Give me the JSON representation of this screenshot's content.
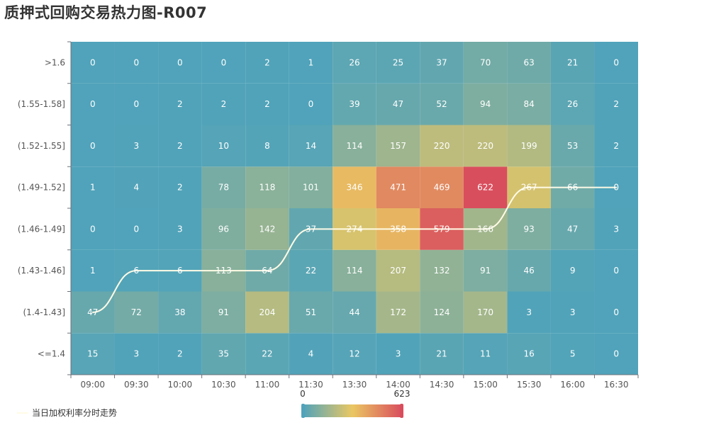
{
  "chart_data": {
    "type": "heatmap",
    "title": "质押式回购交易热力图-R007",
    "x_categories": [
      "09:00",
      "09:30",
      "10:00",
      "10:30",
      "11:00",
      "11:30",
      "13:30",
      "14:00",
      "14:30",
      "15:00",
      "15:30",
      "16:00",
      "16:30"
    ],
    "y_categories": [
      "<=1.4",
      "(1.4-1.43]",
      "(1.43-1.46]",
      "(1.46-1.49]",
      "(1.49-1.52]",
      "(1.52-1.55]",
      "(1.55-1.58]",
      ">1.6"
    ],
    "values": [
      [
        15,
        3,
        2,
        35,
        22,
        4,
        12,
        3,
        21,
        11,
        16,
        5,
        0
      ],
      [
        47,
        72,
        38,
        91,
        204,
        51,
        44,
        172,
        124,
        170,
        3,
        3,
        0
      ],
      [
        1,
        6,
        6,
        113,
        64,
        22,
        114,
        207,
        132,
        91,
        46,
        9,
        0
      ],
      [
        0,
        0,
        3,
        96,
        142,
        37,
        274,
        358,
        579,
        166,
        93,
        47,
        3
      ],
      [
        1,
        4,
        2,
        78,
        118,
        101,
        346,
        471,
        469,
        622,
        267,
        66,
        0
      ],
      [
        0,
        3,
        2,
        10,
        8,
        14,
        114,
        157,
        220,
        220,
        199,
        53,
        2
      ],
      [
        0,
        0,
        2,
        2,
        2,
        0,
        39,
        47,
        52,
        94,
        84,
        26,
        2
      ],
      [
        0,
        0,
        0,
        0,
        2,
        1,
        26,
        25,
        37,
        70,
        63,
        21,
        0
      ]
    ],
    "trend_line": {
      "name": "当日加权利率分时走势",
      "color": "#fffbe6",
      "y_category_index": [
        1,
        2,
        2,
        2,
        2,
        3,
        3,
        3,
        3,
        3,
        4,
        4,
        4
      ]
    },
    "visual_map": {
      "min": 0,
      "max": 623,
      "min_label": "0",
      "max_label": "623",
      "colors": [
        "#50a3ba",
        "#eac763",
        "#d94e5d"
      ]
    }
  }
}
